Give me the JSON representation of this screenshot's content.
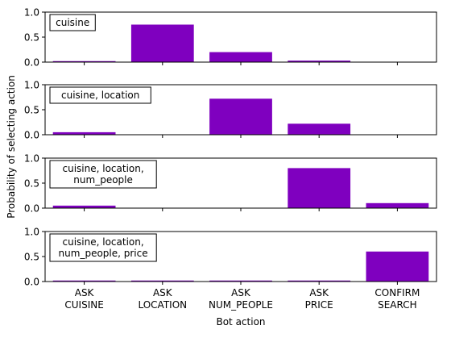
{
  "chart_data": {
    "type": "bar",
    "xlabel": "Bot action",
    "ylabel": "Probability of selecting action",
    "ylim": [
      0,
      1.0
    ],
    "yticks": [
      "0.0",
      "0.5",
      "1.0"
    ],
    "bar_color": "#7f00bf",
    "categories": [
      [
        "ASK",
        "CUISINE"
      ],
      [
        "ASK",
        "LOCATION"
      ],
      [
        "ASK",
        "NUM_PEOPLE"
      ],
      [
        "ASK",
        "PRICE"
      ],
      [
        "CONFIRM",
        "SEARCH"
      ]
    ],
    "panels": [
      {
        "label": [
          "cuisine"
        ],
        "values": [
          0.02,
          0.75,
          0.2,
          0.03,
          0.0
        ]
      },
      {
        "label": [
          "cuisine, location"
        ],
        "values": [
          0.05,
          0.0,
          0.72,
          0.22,
          0.0
        ]
      },
      {
        "label": [
          "cuisine, location,",
          "num_people"
        ],
        "values": [
          0.05,
          0.0,
          0.0,
          0.8,
          0.1
        ]
      },
      {
        "label": [
          "cuisine, location,",
          "num_people, price"
        ],
        "values": [
          0.02,
          0.02,
          0.02,
          0.02,
          0.6
        ]
      }
    ]
  }
}
